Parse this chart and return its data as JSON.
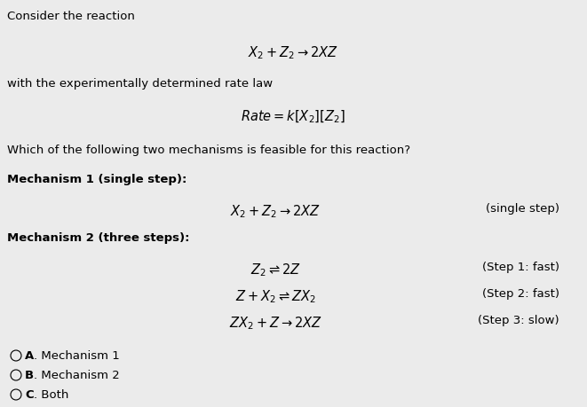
{
  "bg_color": "#ebebeb",
  "text_color": "#000000",
  "title_line": "Consider the reaction",
  "rate_law_intro": "with the experimentally determined rate law",
  "question": "Which of the following two mechanisms is feasible for this reaction?",
  "mech1_header": "Mechanism 1 (single step):",
  "mech2_header": "Mechanism 2 (three steps):",
  "choices": [
    "A. Mechanism 1",
    "B. Mechanism 2",
    "C. Both"
  ],
  "fig_width": 6.61,
  "fig_height": 4.6,
  "dpi": 100
}
